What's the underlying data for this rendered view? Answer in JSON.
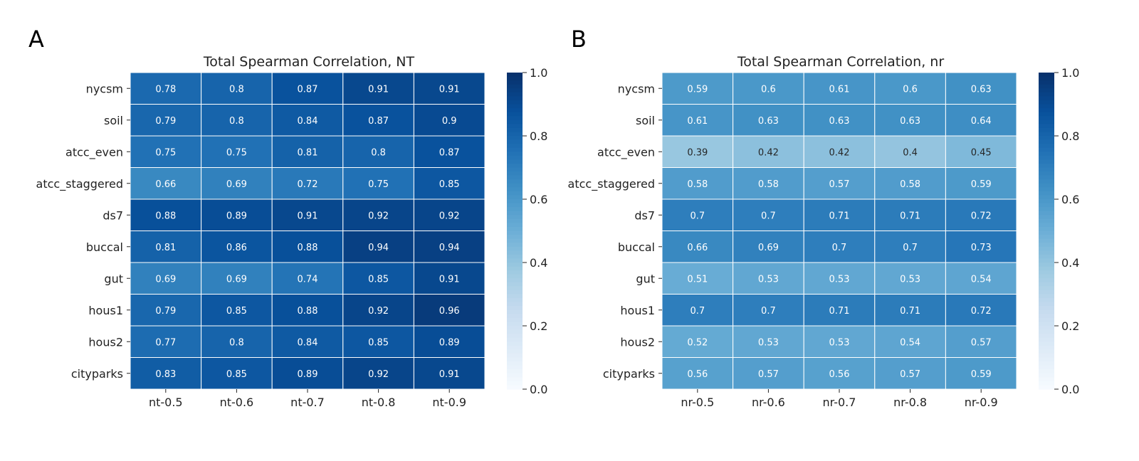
{
  "chart_data": [
    {
      "type": "heatmap",
      "panel_label": "A",
      "title": "Total Spearman Correlation, NT",
      "xlabel": "",
      "ylabel": "",
      "x_categories": [
        "nt-0.5",
        "nt-0.6",
        "nt-0.7",
        "nt-0.8",
        "nt-0.9"
      ],
      "y_categories": [
        "nycsm",
        "soil",
        "atcc_even",
        "atcc_staggered",
        "ds7",
        "buccal",
        "gut",
        "hous1",
        "hous2",
        "cityparks"
      ],
      "values": [
        [
          0.78,
          0.8,
          0.87,
          0.91,
          0.91
        ],
        [
          0.79,
          0.8,
          0.84,
          0.87,
          0.9
        ],
        [
          0.75,
          0.75,
          0.81,
          0.8,
          0.87
        ],
        [
          0.66,
          0.69,
          0.72,
          0.75,
          0.85
        ],
        [
          0.88,
          0.89,
          0.91,
          0.92,
          0.92
        ],
        [
          0.81,
          0.86,
          0.88,
          0.94,
          0.94
        ],
        [
          0.69,
          0.69,
          0.74,
          0.85,
          0.91
        ],
        [
          0.79,
          0.85,
          0.88,
          0.92,
          0.96
        ],
        [
          0.77,
          0.8,
          0.84,
          0.85,
          0.89
        ],
        [
          0.83,
          0.85,
          0.89,
          0.92,
          0.91
        ]
      ],
      "value_range": [
        0.0,
        1.0
      ],
      "colormap": "Blues",
      "colorbar_ticks": [
        "0.0",
        "0.2",
        "0.4",
        "0.6",
        "0.8",
        "1.0"
      ]
    },
    {
      "type": "heatmap",
      "panel_label": "B",
      "title": "Total Spearman Correlation, nr",
      "xlabel": "",
      "ylabel": "",
      "x_categories": [
        "nr-0.5",
        "nr-0.6",
        "nr-0.7",
        "nr-0.8",
        "nr-0.9"
      ],
      "y_categories": [
        "nycsm",
        "soil",
        "atcc_even",
        "atcc_staggered",
        "ds7",
        "buccal",
        "gut",
        "hous1",
        "hous2",
        "cityparks"
      ],
      "values": [
        [
          0.59,
          0.6,
          0.61,
          0.6,
          0.63
        ],
        [
          0.61,
          0.63,
          0.63,
          0.63,
          0.64
        ],
        [
          0.39,
          0.42,
          0.42,
          0.4,
          0.45
        ],
        [
          0.58,
          0.58,
          0.57,
          0.58,
          0.59
        ],
        [
          0.7,
          0.7,
          0.71,
          0.71,
          0.72
        ],
        [
          0.66,
          0.69,
          0.7,
          0.7,
          0.73
        ],
        [
          0.51,
          0.53,
          0.53,
          0.53,
          0.54
        ],
        [
          0.7,
          0.7,
          0.71,
          0.71,
          0.72
        ],
        [
          0.52,
          0.53,
          0.53,
          0.54,
          0.57
        ],
        [
          0.56,
          0.57,
          0.56,
          0.57,
          0.59
        ]
      ],
      "value_range": [
        0.0,
        1.0
      ],
      "colormap": "Blues",
      "colorbar_ticks": [
        "0.0",
        "0.2",
        "0.4",
        "0.6",
        "0.8",
        "1.0"
      ]
    }
  ],
  "colors": {
    "cell_border": "#ffffff",
    "axis_text": "#222222",
    "dark_cell_text": "#ffffff",
    "light_cell_text": "#262626"
  }
}
